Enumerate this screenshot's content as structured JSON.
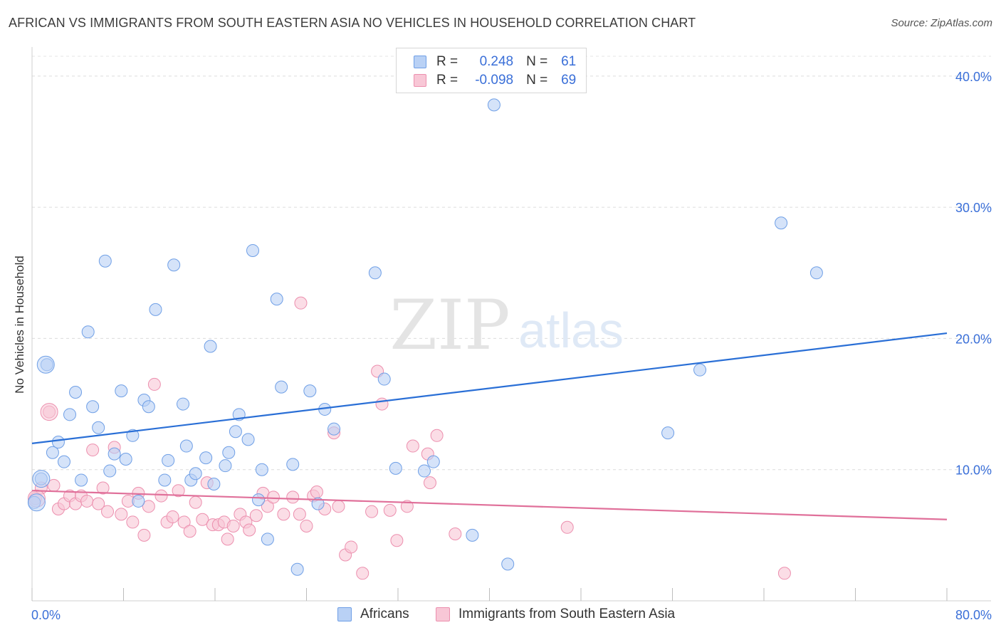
{
  "title": "AFRICAN VS IMMIGRANTS FROM SOUTH EASTERN ASIA NO VEHICLES IN HOUSEHOLD CORRELATION CHART",
  "source": "Source: ZipAtlas.com",
  "watermark": {
    "zip": "ZIP",
    "atlas": "atlas"
  },
  "legend_top": {
    "rows": [
      {
        "r_label": "R =",
        "r_value": "0.248",
        "n_label": "N =",
        "n_value": "61",
        "color": "#6f9fe6",
        "fill": "#b9d1f5"
      },
      {
        "r_label": "R =",
        "r_value": "-0.098",
        "n_label": "N =",
        "n_value": "69",
        "color": "#ec8fae",
        "fill": "#f8c7d6"
      }
    ]
  },
  "chart_data": {
    "type": "scatter",
    "title": "AFRICAN VS IMMIGRANTS FROM SOUTH EASTERN ASIA NO VEHICLES IN HOUSEHOLD CORRELATION CHART",
    "xlabel": "",
    "ylabel": "No Vehicles in Household",
    "xlim": [
      0,
      80
    ],
    "ylim": [
      0,
      42
    ],
    "x_tick_labels": [
      "0.0%",
      "80.0%"
    ],
    "y_ticks": [
      10,
      20,
      30,
      40
    ],
    "y_tick_labels": [
      "10.0%",
      "20.0%",
      "30.0%",
      "40.0%"
    ],
    "grid": "horizontal dashed",
    "legend_position": "top-center",
    "series": [
      {
        "name": "Africans",
        "color": "#6f9fe6",
        "fill": "#b9d1f5",
        "trend_color": "#2a6fd6",
        "trend": {
          "x": [
            0,
            80
          ],
          "y": [
            12.0,
            20.4
          ]
        },
        "points": [
          [
            0.2,
            7.5
          ],
          [
            0.8,
            9.3
          ],
          [
            1.3,
            18.0
          ],
          [
            1.8,
            11.3
          ],
          [
            2.3,
            12.1
          ],
          [
            2.8,
            10.6
          ],
          [
            3.3,
            14.2
          ],
          [
            3.8,
            15.9
          ],
          [
            4.3,
            9.2
          ],
          [
            4.9,
            20.5
          ],
          [
            5.3,
            14.8
          ],
          [
            5.8,
            13.2
          ],
          [
            6.4,
            25.9
          ],
          [
            6.8,
            9.9
          ],
          [
            7.2,
            11.2
          ],
          [
            7.8,
            16.0
          ],
          [
            8.2,
            10.8
          ],
          [
            8.8,
            12.6
          ],
          [
            9.3,
            7.6
          ],
          [
            9.8,
            15.3
          ],
          [
            10.2,
            14.8
          ],
          [
            10.8,
            22.2
          ],
          [
            11.6,
            9.2
          ],
          [
            11.9,
            10.7
          ],
          [
            12.4,
            25.6
          ],
          [
            13.2,
            15.0
          ],
          [
            13.5,
            11.8
          ],
          [
            13.9,
            9.2
          ],
          [
            14.3,
            9.7
          ],
          [
            15.2,
            10.9
          ],
          [
            15.6,
            19.4
          ],
          [
            15.9,
            8.9
          ],
          [
            16.9,
            10.3
          ],
          [
            17.2,
            11.3
          ],
          [
            17.8,
            12.9
          ],
          [
            18.1,
            14.2
          ],
          [
            18.9,
            12.3
          ],
          [
            19.3,
            26.7
          ],
          [
            19.8,
            7.7
          ],
          [
            20.1,
            10.0
          ],
          [
            20.6,
            4.7
          ],
          [
            21.4,
            23.0
          ],
          [
            21.8,
            16.3
          ],
          [
            22.8,
            10.4
          ],
          [
            23.2,
            2.4
          ],
          [
            24.3,
            16.0
          ],
          [
            25.0,
            7.4
          ],
          [
            25.6,
            14.6
          ],
          [
            26.4,
            13.1
          ],
          [
            30.0,
            25.0
          ],
          [
            30.8,
            16.9
          ],
          [
            31.8,
            10.1
          ],
          [
            34.3,
            9.9
          ],
          [
            35.1,
            10.6
          ],
          [
            38.5,
            5.0
          ],
          [
            40.4,
            37.8
          ],
          [
            41.6,
            2.8
          ],
          [
            55.6,
            12.8
          ],
          [
            58.4,
            17.6
          ],
          [
            65.5,
            28.8
          ],
          [
            68.6,
            25.0
          ]
        ],
        "big_points": [
          [
            0.4,
            7.5
          ],
          [
            1.2,
            18.0
          ],
          [
            0.8,
            9.3
          ]
        ]
      },
      {
        "name": "Immigrants from South Eastern Asia",
        "color": "#ec8fae",
        "fill": "#f8c7d6",
        "trend_color": "#e0709a",
        "trend": {
          "x": [
            0,
            80
          ],
          "y": [
            8.4,
            6.2
          ]
        },
        "points": [
          [
            0.3,
            7.8
          ],
          [
            0.8,
            8.6
          ],
          [
            1.5,
            14.4
          ],
          [
            1.9,
            8.8
          ],
          [
            2.3,
            7.0
          ],
          [
            2.8,
            7.4
          ],
          [
            3.3,
            8.0
          ],
          [
            3.8,
            7.4
          ],
          [
            4.3,
            8.0
          ],
          [
            4.8,
            7.6
          ],
          [
            5.3,
            11.5
          ],
          [
            5.8,
            7.4
          ],
          [
            6.2,
            8.6
          ],
          [
            6.6,
            6.8
          ],
          [
            7.2,
            11.7
          ],
          [
            7.8,
            6.6
          ],
          [
            8.4,
            7.6
          ],
          [
            8.8,
            6.0
          ],
          [
            9.3,
            8.2
          ],
          [
            9.8,
            5.0
          ],
          [
            10.2,
            7.2
          ],
          [
            10.7,
            16.5
          ],
          [
            11.3,
            8.0
          ],
          [
            11.8,
            6.0
          ],
          [
            12.3,
            6.4
          ],
          [
            12.8,
            8.4
          ],
          [
            13.3,
            6.0
          ],
          [
            13.8,
            5.3
          ],
          [
            14.3,
            7.5
          ],
          [
            14.9,
            6.2
          ],
          [
            15.3,
            9.0
          ],
          [
            15.8,
            5.8
          ],
          [
            16.3,
            5.8
          ],
          [
            16.8,
            6.0
          ],
          [
            17.1,
            4.7
          ],
          [
            17.6,
            5.7
          ],
          [
            18.2,
            6.6
          ],
          [
            18.7,
            6.0
          ],
          [
            19.0,
            5.4
          ],
          [
            19.6,
            6.5
          ],
          [
            20.2,
            8.2
          ],
          [
            20.6,
            7.2
          ],
          [
            21.1,
            7.9
          ],
          [
            22.0,
            6.6
          ],
          [
            22.8,
            7.9
          ],
          [
            23.4,
            6.6
          ],
          [
            24.0,
            5.7
          ],
          [
            24.6,
            8.0
          ],
          [
            24.9,
            8.3
          ],
          [
            25.6,
            7.0
          ],
          [
            26.4,
            12.8
          ],
          [
            26.8,
            7.2
          ],
          [
            27.4,
            3.5
          ],
          [
            27.9,
            4.1
          ],
          [
            28.9,
            2.1
          ],
          [
            29.7,
            6.8
          ],
          [
            30.2,
            17.5
          ],
          [
            30.6,
            15.0
          ],
          [
            31.3,
            6.9
          ],
          [
            31.9,
            4.6
          ],
          [
            32.8,
            7.2
          ],
          [
            33.3,
            11.8
          ],
          [
            34.6,
            11.2
          ],
          [
            34.8,
            9.0
          ],
          [
            35.4,
            12.6
          ],
          [
            37.0,
            5.1
          ],
          [
            46.8,
            5.6
          ],
          [
            65.8,
            2.1
          ],
          [
            23.5,
            22.7
          ]
        ],
        "big_points": [
          [
            0.4,
            7.8
          ],
          [
            1.5,
            14.4
          ]
        ]
      }
    ]
  },
  "bottom_legend": {
    "items": [
      {
        "label": "Africans",
        "color": "#6f9fe6",
        "fill": "#b9d1f5"
      },
      {
        "label": "Immigrants from South Eastern Asia",
        "color": "#ec8fae",
        "fill": "#f8c7d6"
      }
    ]
  }
}
